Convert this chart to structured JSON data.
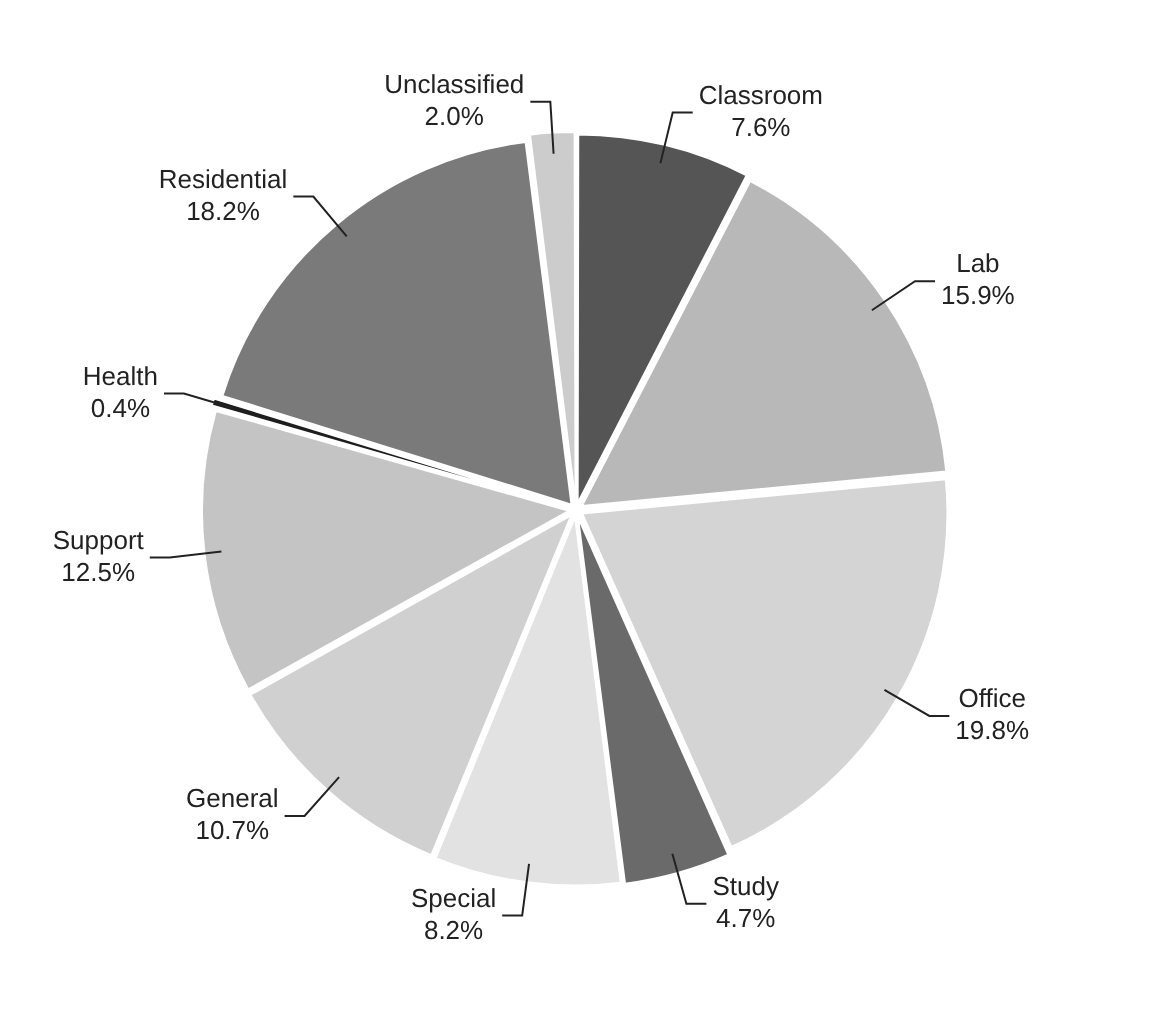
{
  "chart_data": {
    "type": "pie",
    "categories": [
      "Classroom",
      "Lab",
      "Office",
      "Study",
      "Special",
      "General",
      "Support",
      "Health",
      "Residential",
      "Unclassified"
    ],
    "values": [
      7.6,
      15.9,
      19.8,
      4.7,
      8.2,
      10.7,
      12.5,
      0.4,
      18.2,
      2.0
    ],
    "value_labels": [
      "7.6%",
      "15.9%",
      "19.8%",
      "4.7%",
      "8.2%",
      "10.7%",
      "12.5%",
      "0.4%",
      "18.2%",
      "2.0%"
    ],
    "colors": [
      "#555555",
      "#b8b8b8",
      "#d4d4d4",
      "#6a6a6a",
      "#e2e2e2",
      "#d0d0d0",
      "#c4c4c4",
      "#1e1e1e",
      "#7a7a7a",
      "#cccccc"
    ],
    "legend": false
  }
}
